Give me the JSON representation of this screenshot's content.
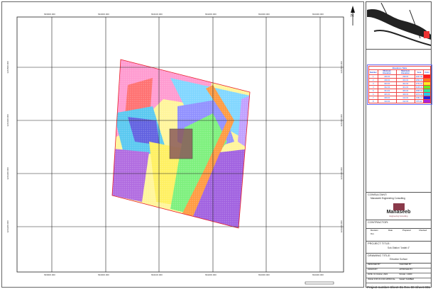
{
  "map": {
    "x_ticks": [
      "693900.000",
      "694000.000",
      "694100.000",
      "694200.000",
      "694300.000",
      "694400.000"
    ],
    "y_ticks": [
      "1243500.000",
      "1243400.000",
      "1243300.000",
      "1243200.000"
    ],
    "north_label": "N"
  },
  "elevation_table": {
    "title": "Elevations Table",
    "headers": [
      "Number",
      "Minimum Elevation",
      "Maximum Elevation",
      "Area",
      "Color"
    ],
    "rows": [
      {
        "n": "1",
        "min": "296.00",
        "max": "298.00",
        "area": "2067.95",
        "color": "#ff1a1a"
      },
      {
        "n": "2",
        "min": "298.00",
        "max": "300.00",
        "area": "2890.65",
        "color": "#ff7a1a"
      },
      {
        "n": "3",
        "min": "300.00",
        "max": "302.00",
        "area": "3764.03",
        "color": "#ffee22"
      },
      {
        "n": "4",
        "min": "302.00",
        "max": "304.00",
        "area": "4045.31",
        "color": "#66ee22"
      },
      {
        "n": "5",
        "min": "304.00",
        "max": "306.00",
        "area": "3895.60",
        "color": "#22ee99"
      },
      {
        "n": "6",
        "min": "306.00",
        "max": "308.00",
        "area": "2970.41",
        "color": "#22ccee"
      },
      {
        "n": "7",
        "min": "308.00",
        "max": "310.00",
        "area": "1582.17",
        "color": "#2222dd"
      },
      {
        "n": "8",
        "min": "310.00",
        "max": "312.00",
        "area": "879.22",
        "color": "#aa22dd"
      }
    ]
  },
  "title_block": {
    "consultant_label": "CONSULTANT:",
    "consultant_name": "Manaseeb Engineering Consulting",
    "logo_text": "Manaseeb",
    "logo_sub": "Engineering Consulting",
    "contractor_label": "CONTRACTOR:",
    "rev_headers": [
      "Revision",
      "Date",
      "Prepared",
      "Checked"
    ],
    "rev_row": [
      "Rev",
      "",
      "",
      ""
    ],
    "project_label": "PROJECT TITLE:",
    "project_name": "Sub-Station \"Arafat 4\"",
    "drawing_label": "DRAWING TITLE:",
    "drawing_name": "Elevation Surface",
    "fields": [
      [
        "DESIGNED BY:",
        "CHECKED BY:"
      ],
      [
        "DRAWN BY:",
        "APPROVED BY:"
      ],
      [
        "DATE: 31 October, 2022",
        "SCALE: 1:2000"
      ]
    ],
    "status_left": "ISSUE STATUS FOR APPROVAL",
    "status_right": "SHEET NUMBER",
    "footer": [
      "Project number",
      "Sheet 01",
      "Rev 00",
      "",
      "Sheet 001"
    ]
  },
  "colors": {
    "boundary": "#e8202a",
    "grid": "#222222",
    "table_text": "#2b4bd8"
  }
}
